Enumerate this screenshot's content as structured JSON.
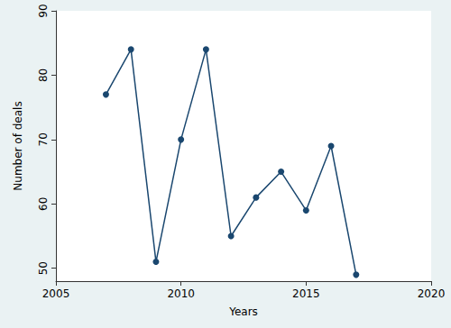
{
  "chart_data": {
    "type": "line",
    "x": [
      2007,
      2008,
      2009,
      2010,
      2011,
      2012,
      2013,
      2014,
      2015,
      2016,
      2017
    ],
    "values": [
      77,
      84,
      51,
      70,
      84,
      55,
      61,
      65,
      59,
      69,
      49
    ],
    "color": "#1a476f",
    "marker": "circle",
    "line_style": "solid",
    "xlabel": "Years",
    "ylabel": "Number of deals",
    "xlim": [
      2005,
      2020
    ],
    "xticks": [
      2005,
      2010,
      2015,
      2020
    ],
    "ylim": [
      48,
      90
    ],
    "yticks": [
      50,
      60,
      70,
      80,
      90
    ],
    "grid": false
  }
}
